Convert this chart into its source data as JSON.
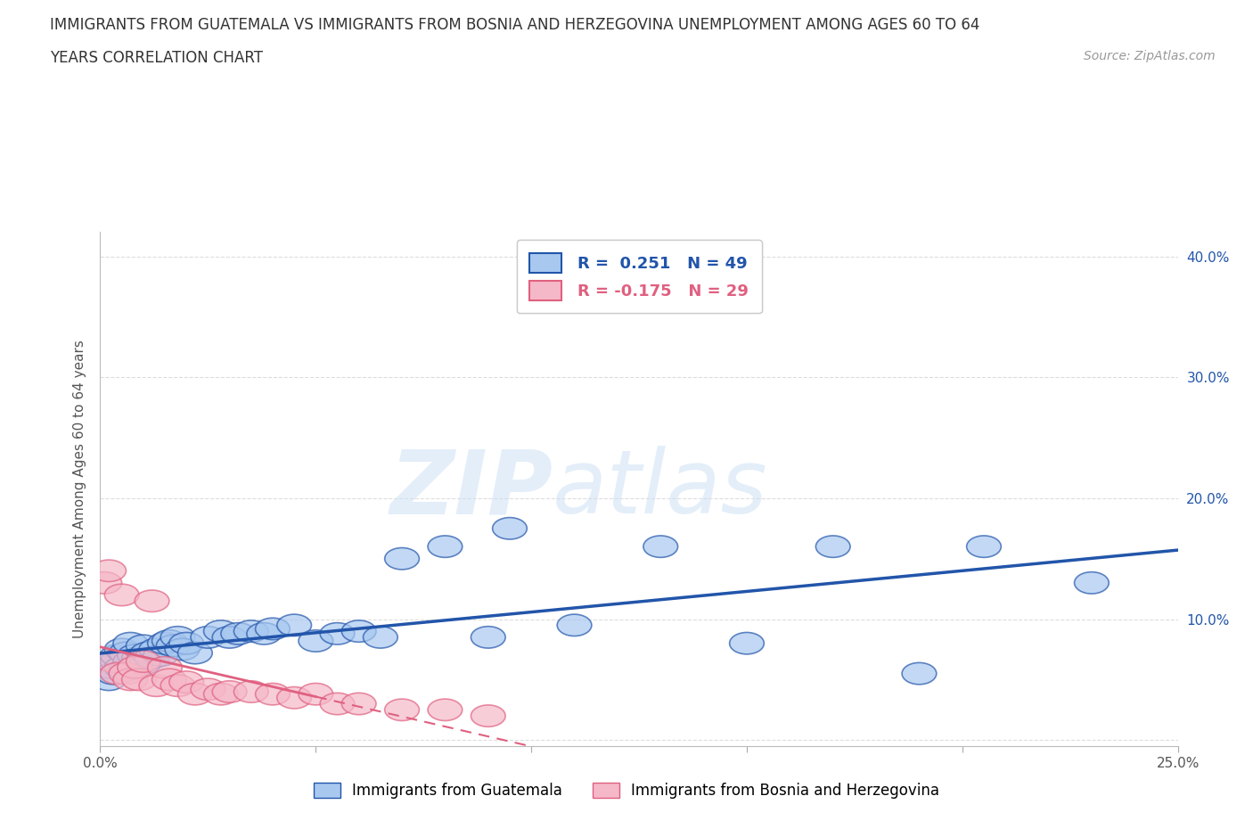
{
  "title_line1": "IMMIGRANTS FROM GUATEMALA VS IMMIGRANTS FROM BOSNIA AND HERZEGOVINA UNEMPLOYMENT AMONG AGES 60 TO 64",
  "title_line2": "YEARS CORRELATION CHART",
  "source_text": "Source: ZipAtlas.com",
  "ylabel": "Unemployment Among Ages 60 to 64 years",
  "watermark_zip": "ZIP",
  "watermark_atlas": "atlas",
  "legend_label1": "Immigrants from Guatemala",
  "legend_label2": "Immigrants from Bosnia and Herzegovina",
  "R1": 0.251,
  "N1": 49,
  "R2": -0.175,
  "N2": 29,
  "xlim": [
    0.0,
    0.25
  ],
  "ylim": [
    -0.005,
    0.42
  ],
  "xticks": [
    0.0,
    0.05,
    0.1,
    0.15,
    0.2,
    0.25
  ],
  "yticks": [
    0.0,
    0.1,
    0.2,
    0.3,
    0.4
  ],
  "xticklabels": [
    "0.0%",
    "",
    "",
    "",
    "",
    "25.0%"
  ],
  "yticklabels": [
    "",
    "10.0%",
    "20.0%",
    "30.0%",
    "40.0%"
  ],
  "color_blue": "#a8c8f0",
  "color_pink": "#f5b8c8",
  "line_color_blue": "#2255aa",
  "line_color_pink": "#e06080",
  "background_color": "#ffffff",
  "grid_color": "#dddddd",
  "guatemala_x": [
    0.002,
    0.002,
    0.003,
    0.004,
    0.004,
    0.005,
    0.005,
    0.006,
    0.006,
    0.007,
    0.007,
    0.008,
    0.009,
    0.01,
    0.01,
    0.011,
    0.012,
    0.013,
    0.014,
    0.015,
    0.016,
    0.017,
    0.018,
    0.019,
    0.02,
    0.022,
    0.025,
    0.028,
    0.03,
    0.032,
    0.035,
    0.038,
    0.04,
    0.045,
    0.05,
    0.055,
    0.06,
    0.065,
    0.07,
    0.08,
    0.09,
    0.095,
    0.11,
    0.13,
    0.15,
    0.17,
    0.19,
    0.205,
    0.23
  ],
  "guatemala_y": [
    0.05,
    0.06,
    0.055,
    0.065,
    0.07,
    0.06,
    0.075,
    0.058,
    0.072,
    0.065,
    0.08,
    0.07,
    0.068,
    0.063,
    0.078,
    0.072,
    0.068,
    0.075,
    0.07,
    0.08,
    0.082,
    0.078,
    0.085,
    0.075,
    0.08,
    0.072,
    0.085,
    0.09,
    0.085,
    0.088,
    0.09,
    0.088,
    0.092,
    0.095,
    0.082,
    0.088,
    0.09,
    0.085,
    0.15,
    0.16,
    0.085,
    0.175,
    0.095,
    0.16,
    0.08,
    0.16,
    0.055,
    0.16,
    0.13
  ],
  "bosnia_x": [
    0.001,
    0.002,
    0.003,
    0.004,
    0.005,
    0.006,
    0.007,
    0.008,
    0.009,
    0.01,
    0.012,
    0.013,
    0.015,
    0.016,
    0.018,
    0.02,
    0.022,
    0.025,
    0.028,
    0.03,
    0.035,
    0.04,
    0.045,
    0.05,
    0.055,
    0.06,
    0.07,
    0.08,
    0.09
  ],
  "bosnia_y": [
    0.13,
    0.14,
    0.065,
    0.055,
    0.12,
    0.055,
    0.05,
    0.06,
    0.05,
    0.065,
    0.115,
    0.045,
    0.06,
    0.05,
    0.045,
    0.048,
    0.038,
    0.042,
    0.038,
    0.04,
    0.04,
    0.038,
    0.035,
    0.038,
    0.03,
    0.03,
    0.025,
    0.025,
    0.02
  ]
}
